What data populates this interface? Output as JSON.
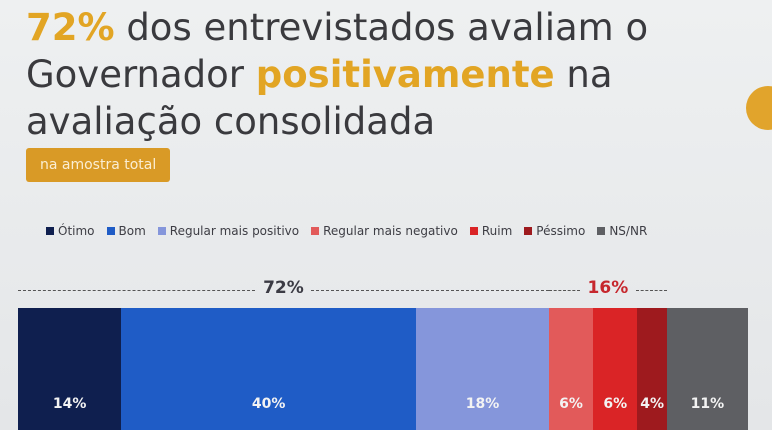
{
  "headline": {
    "pct": "72%",
    "part1": " dos entrevistados avaliam o Governador ",
    "highlight": "positivamente",
    "part2": " na avaliação consolidada"
  },
  "badge": "na amostra total",
  "colors": {
    "accent": "#e2a524",
    "otimo": "#0f1f4f",
    "bom": "#1f5cc6",
    "regular_pos": "#8596db",
    "regular_neg": "#e25a5a",
    "ruim": "#da2426",
    "pessimo": "#9e1a1e",
    "nsnr": "#5e5f63"
  },
  "chart_data": {
    "type": "bar",
    "orientation": "horizontal-stacked",
    "unit": "%",
    "categories": [
      "Ótimo",
      "Bom",
      "Regular mais positivo",
      "Regular mais negativo",
      "Ruim",
      "Péssimo",
      "NS/NR"
    ],
    "values": [
      14,
      40,
      18,
      6,
      6,
      4,
      11
    ],
    "labels": [
      "14%",
      "40%",
      "18%",
      "6%",
      "6%",
      "4%",
      "11%"
    ],
    "groups": [
      {
        "label": "72%",
        "from": 0,
        "to": 2
      },
      {
        "label": "16%",
        "from": 3,
        "to": 5
      }
    ],
    "legend_position": "top"
  }
}
